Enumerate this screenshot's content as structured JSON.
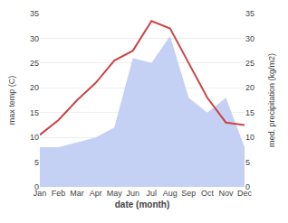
{
  "chart_data": {
    "type": "line",
    "categories": [
      "Jan",
      "Feb",
      "Mar",
      "Apr",
      "May",
      "Jun",
      "Jul",
      "Aug",
      "Sep",
      "Oct",
      "Nov",
      "Dec"
    ],
    "series": [
      {
        "type": "area",
        "axis": "y2",
        "color": "#c5d0f5",
        "values": [
          8.0,
          8.0,
          9.0,
          10.0,
          12.0,
          26.0,
          25.0,
          30.5,
          18.0,
          15.0,
          18.0,
          8.0
        ]
      },
      {
        "type": "line",
        "color": "#cc4444",
        "values": [
          10.5,
          13.5,
          17.5,
          21.0,
          25.5,
          27.5,
          33.5,
          32.0,
          25.0,
          18.0,
          13.0,
          12.5
        ]
      }
    ],
    "xlabel": "date (month)",
    "ylabel": "max temp (C)",
    "y2label": "med. precipitation (kg/m2)",
    "ylim": [
      0,
      35
    ],
    "yticks": [
      0,
      5,
      10,
      15,
      20,
      25,
      30,
      35
    ],
    "y2lim": [
      0,
      35
    ],
    "y2ticks": [
      0,
      5,
      10,
      15,
      20,
      25,
      30,
      35
    ],
    "grid": true
  }
}
